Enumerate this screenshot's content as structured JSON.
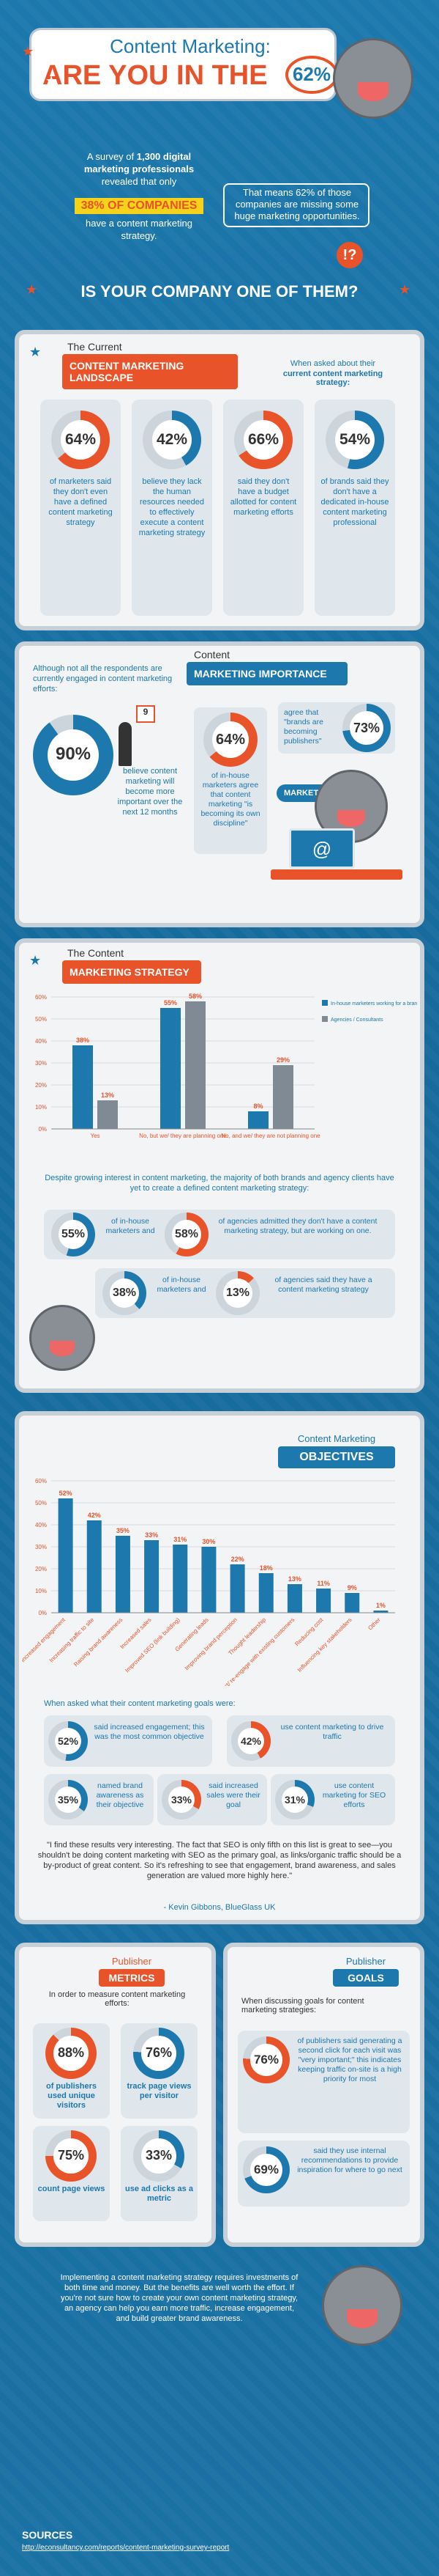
{
  "header": {
    "line1": "Content Marketing:",
    "line2": "ARE YOU IN THE",
    "pct": "62%",
    "q": "?"
  },
  "intro": {
    "left_a": "A survey of ",
    "left_b": "1,300 digital marketing professionals",
    "left_c": " revealed that only",
    "left_highlight": "38% OF COMPANIES",
    "left_d": "have a content marketing strategy.",
    "right": "That means 62% of those companies are missing some huge marketing opportunities."
  },
  "question": "IS YOUR COMPANY ONE OF THEM?",
  "landscape": {
    "ribbon_top": "The Current",
    "ribbon_main": "CONTENT MARKETING LANDSCAPE",
    "aside_a": "When asked about their",
    "aside_b": "current content marketing strategy:",
    "stats": [
      {
        "pct": "64%",
        "value": 64,
        "text": "of marketers said they don't even have a defined content marketing strategy"
      },
      {
        "pct": "42%",
        "value": 42,
        "text": "believe they lack the human resources needed to effectively execute a content marketing strategy"
      },
      {
        "pct": "66%",
        "value": 66,
        "text": "said they don't have a budget allotted for content marketing efforts"
      },
      {
        "pct": "54%",
        "value": 54,
        "text": "of brands said they don't have a dedicated in-house content marketing professional"
      }
    ]
  },
  "importance": {
    "ribbon_top": "Content",
    "ribbon_main": "MARKETING IMPORTANCE",
    "lead": "Although not all the respondents are currently engaged in content marketing efforts:",
    "big_pct": "90%",
    "big_value": 90,
    "big_text": "believe content marketing will become more important over the next 12 months",
    "calendar": "9",
    "mid_pct": "64%",
    "mid_value": 64,
    "mid_text": "of in-house marketers agree that content marketing \"is becoming its own discipline\"",
    "right_text": "agree that \"brands are becoming publishers\"",
    "right_pct": "73%",
    "right_value": 73,
    "bubble": "MARKETING",
    "at": "@"
  },
  "strategy": {
    "ribbon_top": "The Content",
    "ribbon_main": "MARKETING STRATEGY",
    "summary": "Despite growing interest in content marketing, the majority of both brands and agency clients have yet to create a defined content marketing strategy:",
    "pairs": [
      {
        "a_pct": "55%",
        "a_value": 55,
        "a_text": "of in-house marketers and",
        "b_pct": "58%",
        "b_value": 58,
        "b_text": "of agencies admitted they don't have a content marketing strategy, but are working on one."
      },
      {
        "a_pct": "38%",
        "a_value": 38,
        "a_text": "of in-house marketers and",
        "b_pct": "13%",
        "b_value": 13,
        "b_text": "of agencies said they have a content marketing strategy"
      }
    ]
  },
  "objectives": {
    "ribbon_top": "Content Marketing",
    "ribbon_main": "OBJECTIVES",
    "lead": "When asked what their content marketing goals were:",
    "stats": [
      {
        "pct": "52%",
        "value": 52,
        "text": "said increased engagement; this was the most common objective"
      },
      {
        "pct": "42%",
        "value": 42,
        "text": "use content marketing to drive traffic"
      },
      {
        "pct": "35%",
        "value": 35,
        "text": "named brand awareness as their objective"
      },
      {
        "pct": "33%",
        "value": 33,
        "text": "said increased sales were their goal"
      },
      {
        "pct": "31%",
        "value": 31,
        "text": "use content marketing for SEO efforts"
      }
    ],
    "quote": "\"I find these results very interesting. The fact that SEO is only fifth on this list is great to see—you shouldn't be doing content marketing with SEO as the primary goal, as links/organic traffic should be a by-product of great content. So it's refreshing to see that engagement, brand awareness, and sales generation are valued more highly here.\"",
    "attribution": "- Kevin Gibbons, BlueGlass UK"
  },
  "chart_data": [
    {
      "type": "bar",
      "categories": [
        "Yes",
        "No, but we/ they are planning one",
        "No, and we/ they are not planning one"
      ],
      "series": [
        {
          "name": "In-house marketers working for a brand",
          "values": [
            38,
            55,
            8
          ]
        },
        {
          "name": "Agencies / Consultants",
          "values": [
            13,
            58,
            29
          ]
        }
      ],
      "labels": [
        [
          "38%",
          "13%"
        ],
        [
          "55%",
          "58%"
        ],
        [
          "8%",
          "29%"
        ]
      ],
      "yticks": [
        "0%",
        "10%",
        "20%",
        "30%",
        "40%",
        "50%",
        "60%"
      ],
      "ylim": [
        0,
        60
      ],
      "colors": [
        "#1c78ad",
        "#7f8a94"
      ]
    },
    {
      "type": "bar",
      "categories": [
        "Increased engagement",
        "Increasing traffic to site",
        "Raising brand awareness",
        "Increased sales",
        "Improved SEO (link building)",
        "Generating leads",
        "Improving brand perception",
        "Thought leadership",
        "Reconnect/ re-engage with existing customers",
        "Reducing cost",
        "Influencing key stakeholders",
        "Other"
      ],
      "values": [
        52,
        42,
        35,
        33,
        31,
        30,
        22,
        18,
        13,
        11,
        9,
        1
      ],
      "labels": [
        "52%",
        "42%",
        "35%",
        "33%",
        "31%",
        "30%",
        "22%",
        "18%",
        "13%",
        "11%",
        "9%",
        "1%"
      ],
      "yticks": [
        "0%",
        "10%",
        "20%",
        "30%",
        "40%",
        "50%",
        "60%"
      ],
      "ylim": [
        0,
        60
      ],
      "colors": [
        "#1c78ad"
      ]
    }
  ],
  "metrics": {
    "ribbon_top": "Publisher",
    "ribbon_main": "METRICS",
    "lead": "In order to measure content marketing efforts:",
    "stats": [
      {
        "pct": "88%",
        "value": 88,
        "text": "of publishers used unique visitors"
      },
      {
        "pct": "76%",
        "value": 76,
        "text": "track page views per visitor"
      },
      {
        "pct": "75%",
        "value": 75,
        "text": "count page views"
      },
      {
        "pct": "33%",
        "value": 33,
        "text": "use ad clicks as a metric"
      }
    ]
  },
  "goals": {
    "ribbon_top": "Publisher",
    "ribbon_main": "GOALS",
    "lead": "When discussing goals for content marketing strategies:",
    "stats": [
      {
        "pct": "76%",
        "value": 76,
        "text": "of publishers said generating a second click for each visit was \"very important;\" this indicates keeping traffic on-site is a high priority for most"
      },
      {
        "pct": "69%",
        "value": 69,
        "text": "said they use internal recommendations to provide inspiration for where to go next"
      }
    ]
  },
  "footer": {
    "text": "Implementing a content marketing strategy requires investments of both time and money. But the benefits are well worth the effort. If you're not sure how to create your own content marketing strategy, an agency can help you earn more traffic, increase engagement, and build greater brand awareness.",
    "sources_label": "SOURCES",
    "source_url": "http://econsultancy.com/reports/content-marketing-survey-report"
  },
  "colors": {
    "orange": "#e8532a",
    "blue": "#1c78ad",
    "grey": "#7f8a94"
  }
}
